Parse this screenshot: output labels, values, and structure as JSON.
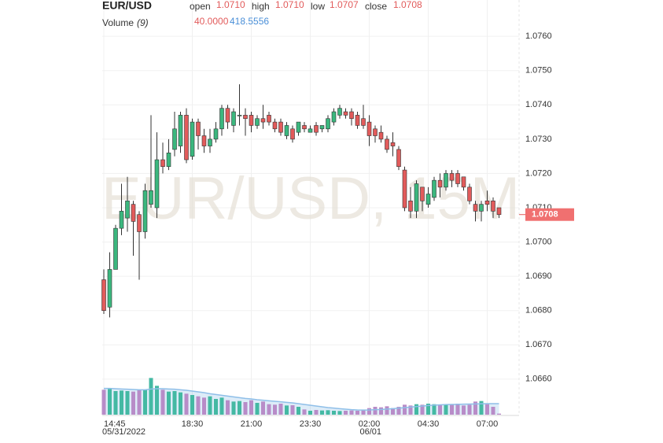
{
  "chart_data": {
    "type": "candlestick",
    "title": "EUR/USD",
    "watermark": "EUR/USD, 15M",
    "ohlc_legend": [
      {
        "label": "open",
        "value": "1.0710"
      },
      {
        "label": "high",
        "value": "1.0710"
      },
      {
        "label": "low",
        "value": "1.0707"
      },
      {
        "label": "close",
        "value": "1.0708"
      }
    ],
    "volume_legend": {
      "label": "Volume",
      "period": "(9)",
      "values": [
        "40.0000",
        "418.5556"
      ]
    },
    "last_price": {
      "value": 1.0708,
      "label": "1.0708"
    },
    "up_color": "#3bb77e",
    "down_color": "#e25b5b",
    "volume_up_color": "#44b9a3",
    "volume_down_color": "#b88cc8",
    "ma_color": "#8fbfe8",
    "grid": true,
    "categories": [
      "14:45",
      null,
      null,
      null,
      null,
      null,
      null,
      null,
      null,
      null,
      null,
      null,
      null,
      null,
      null,
      "18:30",
      null,
      null,
      null,
      null,
      null,
      null,
      null,
      null,
      null,
      "21:00",
      null,
      null,
      null,
      null,
      null,
      null,
      null,
      null,
      null,
      "23:30",
      null,
      null,
      null,
      null,
      null,
      null,
      null,
      null,
      null,
      "02:00",
      null,
      null,
      null,
      null,
      null,
      null,
      null,
      null,
      null,
      "04:30",
      null,
      null,
      null,
      null,
      null,
      null,
      null,
      null,
      null,
      "07:00",
      null,
      null
    ],
    "dates": [
      "05/31/2022",
      null,
      null,
      null,
      null,
      null,
      null,
      null,
      null,
      null,
      null,
      null,
      null,
      null,
      null,
      null,
      null,
      null,
      null,
      null,
      null,
      null,
      null,
      null,
      null,
      null,
      null,
      null,
      null,
      null,
      null,
      null,
      null,
      null,
      null,
      null,
      null,
      null,
      null,
      null,
      null,
      null,
      null,
      null,
      null,
      "06/01",
      null,
      null,
      null,
      null,
      null,
      null,
      null,
      null,
      null,
      null,
      null,
      null,
      null,
      null,
      null,
      null,
      null,
      null,
      null,
      null,
      null,
      null
    ],
    "open": [
      1.0689,
      1.0681,
      1.0692,
      1.0704,
      1.0707,
      1.0711,
      1.0708,
      1.0703,
      1.0711,
      1.071,
      1.0724,
      1.0722,
      1.0727,
      1.0728,
      1.0737,
      1.0725,
      1.0735,
      1.0731,
      1.0728,
      1.073,
      1.0733,
      1.0739,
      1.0734,
      1.0737,
      1.0737,
      1.0737,
      1.0734,
      1.0736,
      1.0737,
      1.0735,
      1.0735,
      1.0731,
      1.0733,
      1.0732,
      1.0734,
      1.0732,
      1.0734,
      1.0733,
      1.0733,
      1.0735,
      1.0737,
      1.0738,
      1.0738,
      1.0737,
      1.0736,
      1.0735,
      1.0733,
      1.0732,
      1.073,
      1.0729,
      1.0727,
      1.0721,
      1.0712,
      1.0709,
      1.0716,
      1.0711,
      1.0713,
      1.0718,
      1.0716,
      1.072,
      1.072,
      1.0719,
      1.0716,
      1.0711,
      1.0709,
      1.0712,
      1.0712,
      1.071
    ],
    "high": [
      1.0692,
      1.0697,
      1.0705,
      1.0717,
      1.0719,
      1.0712,
      1.0709,
      1.0717,
      1.0737,
      1.0732,
      1.0729,
      1.073,
      1.0738,
      1.0738,
      1.0739,
      1.0736,
      1.0736,
      1.0733,
      1.0733,
      1.0735,
      1.074,
      1.074,
      1.0739,
      1.0746,
      1.0739,
      1.0738,
      1.0737,
      1.074,
      1.0738,
      1.0736,
      1.0736,
      1.0735,
      1.0734,
      1.0735,
      1.0735,
      1.0734,
      1.0735,
      1.0734,
      1.0737,
      1.0739,
      1.074,
      1.0739,
      1.0739,
      1.0738,
      1.074,
      1.0737,
      1.0734,
      1.0734,
      1.0731,
      1.0732,
      1.0728,
      1.0722,
      1.0716,
      1.0718,
      1.0716,
      1.0716,
      1.0719,
      1.072,
      1.0721,
      1.0721,
      1.0721,
      1.0719,
      1.0717,
      1.0712,
      1.0712,
      1.0715,
      1.0713,
      1.071
    ],
    "low": [
      1.0679,
      1.0678,
      1.0692,
      1.0702,
      1.0703,
      1.0696,
      1.0689,
      1.0701,
      1.071,
      1.0707,
      1.072,
      1.0721,
      1.0725,
      1.0726,
      1.0723,
      1.0724,
      1.0727,
      1.0726,
      1.0726,
      1.0729,
      1.0731,
      1.0733,
      1.0732,
      1.0734,
      1.0731,
      1.0732,
      1.0733,
      1.0733,
      1.0734,
      1.0732,
      1.0731,
      1.073,
      1.0729,
      1.0731,
      1.0732,
      1.0732,
      1.0731,
      1.0732,
      1.0732,
      1.0734,
      1.0736,
      1.0736,
      1.0734,
      1.0733,
      1.0733,
      1.0728,
      1.0729,
      1.0729,
      1.0726,
      1.0725,
      1.0721,
      1.0709,
      1.0707,
      1.0707,
      1.0709,
      1.071,
      1.0712,
      1.0713,
      1.0715,
      1.0716,
      1.0716,
      1.0715,
      1.0711,
      1.0706,
      1.0706,
      1.0709,
      1.0707,
      1.0707
    ],
    "close": [
      1.068,
      1.0692,
      1.0704,
      1.0709,
      1.0712,
      1.0706,
      1.0703,
      1.0715,
      1.0715,
      1.0724,
      1.0722,
      1.0726,
      1.0733,
      1.0737,
      1.0724,
      1.0735,
      1.0731,
      1.0728,
      1.073,
      1.0733,
      1.0739,
      1.0735,
      1.0738,
      1.0737,
      1.0736,
      1.0734,
      1.0736,
      1.0735,
      1.0735,
      1.0733,
      1.0732,
      1.0734,
      1.073,
      1.0735,
      1.0733,
      1.0733,
      1.0732,
      1.0734,
      1.0736,
      1.0738,
      1.0739,
      1.0737,
      1.0736,
      1.0734,
      1.0734,
      1.0731,
      1.0731,
      1.073,
      1.0727,
      1.0728,
      1.0722,
      1.071,
      1.0709,
      1.0717,
      1.0712,
      1.0714,
      1.0718,
      1.0716,
      1.072,
      1.0718,
      1.0717,
      1.0716,
      1.0712,
      1.0709,
      1.0711,
      1.0711,
      1.0709,
      1.0708
    ],
    "volume": [
      950,
      980,
      900,
      920,
      900,
      880,
      930,
      960,
      1400,
      1100,
      950,
      880,
      900,
      850,
      800,
      750,
      700,
      650,
      700,
      600,
      650,
      550,
      500,
      520,
      480,
      550,
      450,
      500,
      400,
      380,
      420,
      350,
      360,
      300,
      200,
      150,
      180,
      160,
      170,
      150,
      140,
      150,
      160,
      150,
      180,
      250,
      300,
      280,
      320,
      250,
      300,
      380,
      350,
      400,
      380,
      420,
      400,
      380,
      400,
      380,
      420,
      350,
      380,
      500,
      520,
      400,
      300,
      40
    ],
    "volume_ma": [
      1000,
      1000,
      990,
      980,
      970,
      960,
      950,
      950,
      980,
      990,
      990,
      980,
      970,
      950,
      930,
      900,
      870,
      840,
      800,
      770,
      740,
      710,
      680,
      650,
      620,
      600,
      570,
      550,
      530,
      510,
      490,
      470,
      450,
      420,
      390,
      360,
      330,
      300,
      270,
      250,
      230,
      210,
      190,
      180,
      175,
      180,
      190,
      200,
      215,
      230,
      250,
      270,
      290,
      310,
      330,
      350,
      365,
      375,
      385,
      390,
      395,
      400,
      405,
      410,
      415,
      420,
      420,
      418.5556
    ],
    "volume_ylim": [
      0,
      1800
    ],
    "ylim": [
      1.06494,
      1.07706
    ],
    "yticks": [
      {
        "value": 1.066,
        "label": "1.0660"
      },
      {
        "value": 1.067,
        "label": "1.0670"
      },
      {
        "value": 1.068,
        "label": "1.0680"
      },
      {
        "value": 1.069,
        "label": "1.0690"
      },
      {
        "value": 1.07,
        "label": "1.0700"
      },
      {
        "value": 1.071,
        "label": "1.0710"
      },
      {
        "value": 1.072,
        "label": "1.0720"
      },
      {
        "value": 1.073,
        "label": "1.0730"
      },
      {
        "value": 1.074,
        "label": "1.0740"
      },
      {
        "value": 1.075,
        "label": "1.0750"
      },
      {
        "value": 1.076,
        "label": "1.0760"
      }
    ]
  }
}
